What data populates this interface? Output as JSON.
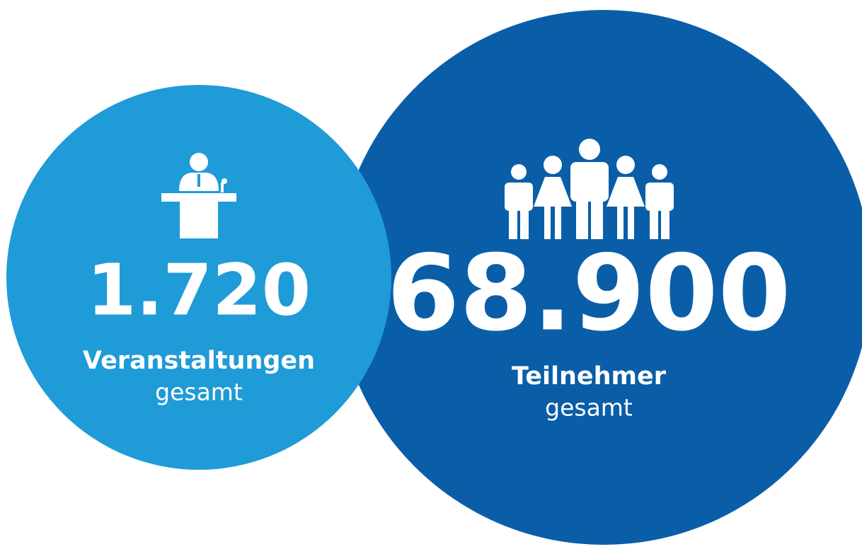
{
  "stats": [
    {
      "value": "1.720",
      "label": "Veranstaltungen",
      "sub": "gesamt"
    },
    {
      "value": "68.900",
      "label": "Teilnehmer",
      "sub": "gesamt"
    }
  ]
}
